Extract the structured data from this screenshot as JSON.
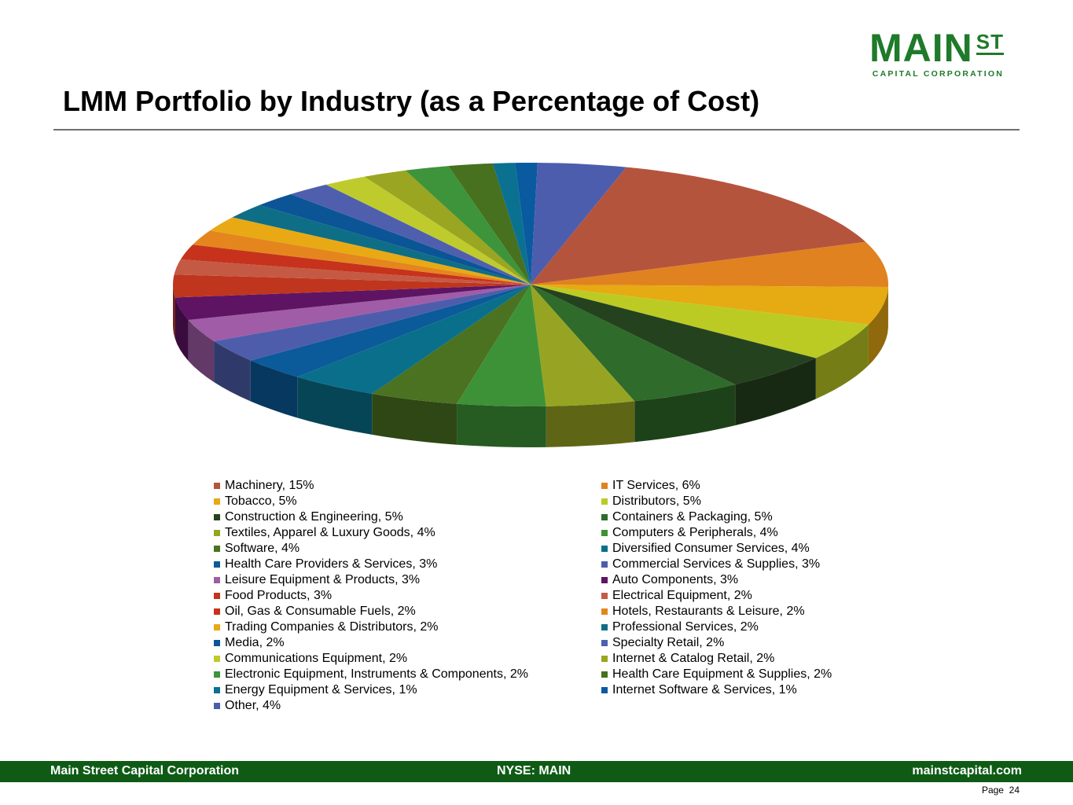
{
  "logo": {
    "main": "MAIN",
    "st": "ST",
    "sub": "CAPITAL CORPORATION"
  },
  "header": {
    "title": "LMM Portfolio by Industry (as a Percentage of Cost)"
  },
  "footer": {
    "left": "Main Street Capital Corporation",
    "center": "NYSE: MAIN",
    "right": "mainstcapital.com"
  },
  "page": {
    "label": "Page",
    "number": "24"
  },
  "chart_data": {
    "type": "pie",
    "title": "LMM Portfolio by Industry (as a Percentage of Cost)",
    "unit": "%",
    "slices": [
      {
        "name": "Machinery",
        "value": 15,
        "label": "Machinery, 15%",
        "color": "#b5543d"
      },
      {
        "name": "IT Services",
        "value": 6,
        "label": "IT Services, 6%",
        "color": "#e0821f"
      },
      {
        "name": "Tobacco",
        "value": 5,
        "label": "Tobacco, 5%",
        "color": "#e6aa12"
      },
      {
        "name": "Distributors",
        "value": 5,
        "label": "Distributors, 5%",
        "color": "#bccb23"
      },
      {
        "name": "Construction & Engineering",
        "value": 5,
        "label": "Construction & Engineering, 5%",
        "color": "#25421f"
      },
      {
        "name": "Containers & Packaging",
        "value": 5,
        "label": "Containers & Packaging, 5%",
        "color": "#2f6b2a"
      },
      {
        "name": "Textiles, Apparel & Luxury Goods",
        "value": 4,
        "label": "Textiles, Apparel & Luxury Goods, 4%",
        "color": "#97a423"
      },
      {
        "name": "Computers & Peripherals",
        "value": 4,
        "label": "Computers & Peripherals, 4%",
        "color": "#3d9237"
      },
      {
        "name": "Software",
        "value": 4,
        "label": "Software, 4%",
        "color": "#4a7221"
      },
      {
        "name": "Diversified Consumer Services",
        "value": 4,
        "label": "Diversified Consumer Services, 4%",
        "color": "#0a6f8b"
      },
      {
        "name": "Health Care Providers & Services",
        "value": 3,
        "label": "Health Care Providers & Services, 3%",
        "color": "#0b5a99"
      },
      {
        "name": "Commercial Services & Supplies",
        "value": 3,
        "label": "Commercial Services & Supplies, 3%",
        "color": "#4e5dab"
      },
      {
        "name": "Leisure Equipment & Products",
        "value": 3,
        "label": "Leisure Equipment & Products, 3%",
        "color": "#a05ca7"
      },
      {
        "name": "Auto Components",
        "value": 3,
        "label": "Auto Components, 3%",
        "color": "#5e1462"
      },
      {
        "name": "Food Products",
        "value": 3,
        "label": "Food Products, 3%",
        "color": "#c0351e"
      },
      {
        "name": "Electrical Equipment",
        "value": 2,
        "label": "Electrical Equipment, 2%",
        "color": "#c45a44"
      },
      {
        "name": "Oil, Gas & Consumable Fuels",
        "value": 2,
        "label": "Oil, Gas & Consumable Fuels, 2%",
        "color": "#c7321d"
      },
      {
        "name": "Hotels, Restaurants & Leisure",
        "value": 2,
        "label": "Hotels, Restaurants & Leisure, 2%",
        "color": "#e4861d"
      },
      {
        "name": "Trading Companies & Distributors",
        "value": 2,
        "label": "Trading Companies & Distributors, 2%",
        "color": "#e8a914"
      },
      {
        "name": "Professional Services",
        "value": 2,
        "label": "Professional Services, 2%",
        "color": "#0e6e86"
      },
      {
        "name": "Media",
        "value": 2,
        "label": "Media, 2%",
        "color": "#0b5596"
      },
      {
        "name": "Specialty Retail",
        "value": 2,
        "label": "Specialty Retail, 2%",
        "color": "#4f5fae"
      },
      {
        "name": "Communications Equipment",
        "value": 2,
        "label": "Communications Equipment, 2%",
        "color": "#bfcb2d"
      },
      {
        "name": "Internet & Catalog Retail",
        "value": 2,
        "label": "Internet & Catalog Retail, 2%",
        "color": "#9aa521"
      },
      {
        "name": "Electronic Equipment, Instruments & Components",
        "value": 2,
        "label": "Electronic Equipment, Instruments & Components, 2%",
        "color": "#3e943a"
      },
      {
        "name": "Health Care Equipment & Supplies",
        "value": 2,
        "label": "Health Care Equipment & Supplies, 2%",
        "color": "#47701f"
      },
      {
        "name": "Energy Equipment & Services",
        "value": 1,
        "label": "Energy Equipment & Services, 1%",
        "color": "#0b7190"
      },
      {
        "name": "Internet Software & Services",
        "value": 1,
        "label": "Internet Software & Services, 1%",
        "color": "#0a5aa0"
      },
      {
        "name": "Other",
        "value": 4,
        "label": "Other, 4%",
        "color": "#4d5dad"
      }
    ]
  }
}
